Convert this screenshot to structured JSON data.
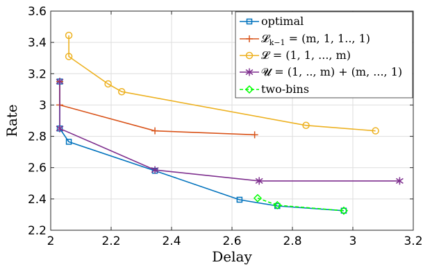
{
  "chart_data": {
    "type": "line",
    "xlabel": "Delay",
    "ylabel": "Rate",
    "xlim": [
      2,
      3.2
    ],
    "ylim": [
      2.2,
      3.6
    ],
    "xticks": [
      "2",
      "2.2",
      "2.4",
      "2.6",
      "2.8",
      "3",
      "3.2"
    ],
    "yticks": [
      "2.2",
      "2.4",
      "2.6",
      "2.8",
      "3",
      "3.2",
      "3.4",
      "3.6"
    ],
    "grid": true,
    "legend_position": "top-right",
    "series": [
      {
        "name": "optimal",
        "color": "#0072BD",
        "marker": "square",
        "points": [
          [
            2.03,
            3.15
          ],
          [
            2.03,
            2.85
          ],
          [
            2.06,
            2.765
          ],
          [
            2.345,
            2.58
          ],
          [
            2.625,
            2.395
          ],
          [
            2.75,
            2.355
          ],
          [
            2.97,
            2.325
          ]
        ]
      },
      {
        "name": "L_{k-1} = (m,1,1..,1)",
        "color": "#D95319",
        "marker": "plus",
        "points": [
          [
            2.03,
            3.15
          ],
          [
            2.03,
            3.0
          ],
          [
            2.345,
            2.835
          ],
          [
            2.675,
            2.81
          ]
        ]
      },
      {
        "name": "L = (1,1,...,m)",
        "color": "#EDB120",
        "marker": "circle",
        "points": [
          [
            2.06,
            3.445
          ],
          [
            2.06,
            3.31
          ],
          [
            2.19,
            3.135
          ],
          [
            2.235,
            3.085
          ],
          [
            2.845,
            2.87
          ],
          [
            3.075,
            2.835
          ]
        ]
      },
      {
        "name": "U = (1,..,m) + (m,...,1)",
        "color": "#7E2F8E",
        "marker": "asterisk",
        "points": [
          [
            2.03,
            3.15
          ],
          [
            2.03,
            2.85
          ],
          [
            2.345,
            2.585
          ],
          [
            2.69,
            2.515
          ],
          [
            3.155,
            2.515
          ]
        ]
      },
      {
        "name": "two-bins",
        "color": "#00FF00",
        "marker": "diamond",
        "dashed": true,
        "points": [
          [
            2.685,
            2.405
          ],
          [
            2.75,
            2.36
          ],
          [
            2.97,
            2.325
          ]
        ]
      }
    ]
  },
  "legend": {
    "optimal": "optimal",
    "l_k1_lhs": "𝓛",
    "l_k1_sub": "k−1",
    "l_k1_rhs": " = (m, 1, 1.., 1)",
    "l_full": "𝓛 = (1, 1, ..., m)",
    "u_full": "𝓤 = (1, .., m) + (m, ..., 1)",
    "two_bins": "two-bins"
  }
}
